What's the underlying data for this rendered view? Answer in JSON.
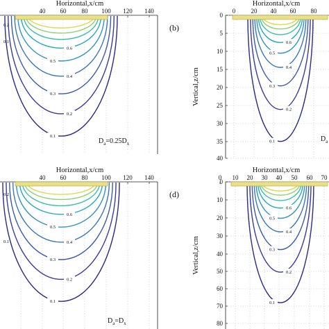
{
  "panels": [
    {
      "label": "",
      "xlabel": "Horizontal,x/cm",
      "ylabel": "",
      "xticks": [
        "40",
        "60",
        "80",
        "100",
        "120",
        "140"
      ],
      "yticks": [],
      "note": "D",
      "note_sub": "a",
      "note_rest": "=0.25D",
      "note_sub2": "x"
    },
    {
      "label": "(b)",
      "xlabel": "Horizontal,x/cm",
      "ylabel": "Vertical,z/cm",
      "xticks": [
        "0",
        "20",
        "40",
        "60",
        "80",
        "100"
      ],
      "yticks": [
        "0",
        "5",
        "10",
        "15",
        "20",
        "25",
        "30",
        "35",
        "40"
      ],
      "note": "D",
      "note_sub": "a",
      "note_rest": "",
      "note_sub2": ""
    },
    {
      "label": "",
      "xlabel": "Horizontal,x/cm",
      "ylabel": "",
      "xticks": [
        "40",
        "60",
        "80",
        "100",
        "120",
        "140"
      ],
      "yticks": [],
      "note": "D",
      "note_sub": "a",
      "note_rest": "=D",
      "note_sub2": "x"
    },
    {
      "label": "(d)",
      "xlabel": "Horizontal,x/cm",
      "ylabel": "Vertical,z/cm",
      "xticks": [
        "0",
        "10",
        "20",
        "30",
        "40",
        "50",
        "60",
        "70",
        "80",
        "90",
        "100"
      ],
      "yticks": [
        "0",
        "10",
        "20",
        "30",
        "40",
        "50",
        "60",
        "70",
        "80"
      ],
      "note": "",
      "note_sub": "",
      "note_rest": "",
      "note_sub2": ""
    }
  ],
  "colors": {
    "c01": "#2b2a85",
    "c02": "#3b3a9a",
    "c03": "#3a5aa8",
    "c04": "#3a76b6",
    "c05": "#2f93bd",
    "c06": "#25aab8",
    "c07": "#39c0a8",
    "c08": "#8fd06f",
    "c09": "#d9d94a",
    "source": "#e8e08a",
    "source_edge": "#b0a23a"
  },
  "chart_data": [
    {
      "type": "contour",
      "panel": "a",
      "xlabel": "Horizontal,x/cm",
      "xlim": [
        20,
        140
      ],
      "contour_levels": [
        0.1,
        0.2,
        0.3,
        0.4,
        0.5,
        0.6,
        0.7,
        0.8,
        0.9
      ],
      "line_labels": [
        "0.2",
        "0.1",
        "0.6",
        "0.5",
        "0.4",
        "0.3",
        "0.2",
        "0.1"
      ],
      "source_segment_x": [
        30,
        105
      ]
    },
    {
      "type": "contour",
      "panel": "b",
      "xlabel": "Horizontal,x/cm",
      "ylabel": "Vertical,z/cm",
      "xlim": [
        0,
        110
      ],
      "ylim": [
        40,
        0
      ],
      "contour_levels": [
        0.1,
        0.2,
        0.3,
        0.4,
        0.5,
        0.6,
        0.7,
        0.8,
        0.9
      ],
      "line_labels": [
        "0.1",
        "0.2",
        "0.3",
        "0.6",
        "0.5",
        "0.4",
        "0.3",
        "0.2",
        "0.1"
      ],
      "source_segment_x": [
        30,
        110
      ]
    },
    {
      "type": "contour",
      "panel": "c",
      "xlabel": "Horizontal,x/cm",
      "xlim": [
        20,
        140
      ],
      "contour_levels": [
        0.1,
        0.2,
        0.3,
        0.4,
        0.5,
        0.6,
        0.7,
        0.8,
        0.9
      ],
      "line_labels": [
        "0.2",
        "0.1",
        "0.6",
        "0.5",
        "0.4",
        "0.3",
        "0.2",
        "0.1"
      ],
      "source_segment_x": [
        30,
        105
      ]
    },
    {
      "type": "contour",
      "panel": "d",
      "xlabel": "Horizontal,x/cm",
      "ylabel": "Vertical,z/cm",
      "xlim": [
        0,
        110
      ],
      "ylim": [
        80,
        0
      ],
      "contour_levels": [
        0.1,
        0.2,
        0.3,
        0.4,
        0.5,
        0.6,
        0.7,
        0.8,
        0.9
      ],
      "line_labels": [
        "0.1",
        "0.2",
        "0.3",
        "0.6",
        "0.5",
        "0.4",
        "0.3",
        "0.2",
        "0.1"
      ],
      "source_segment_x": [
        30,
        110
      ]
    }
  ]
}
